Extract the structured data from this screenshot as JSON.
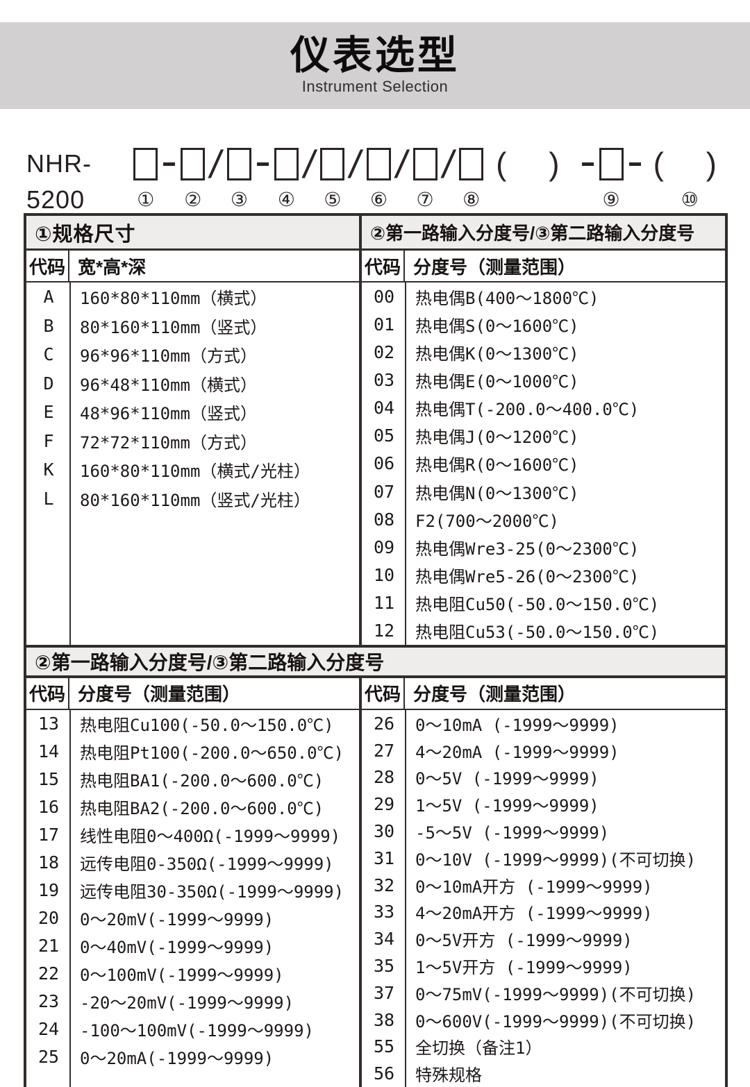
{
  "page": {
    "title": "仪表选型",
    "subtitle": "Instrument Selection"
  },
  "model": {
    "prefix": "NHR-5200",
    "segments": [
      {
        "kind": "box",
        "sub": "①"
      },
      {
        "kind": "dash",
        "text": "-"
      },
      {
        "kind": "box",
        "sub": "②"
      },
      {
        "kind": "slash",
        "text": "/"
      },
      {
        "kind": "box",
        "sub": "③"
      },
      {
        "kind": "dash",
        "text": "-"
      },
      {
        "kind": "box",
        "sub": "④"
      },
      {
        "kind": "slash",
        "text": "/"
      },
      {
        "kind": "box",
        "sub": "⑤"
      },
      {
        "kind": "slash",
        "text": "/"
      },
      {
        "kind": "box",
        "sub": "⑥"
      },
      {
        "kind": "slash",
        "text": "/"
      },
      {
        "kind": "box",
        "sub": "⑦"
      },
      {
        "kind": "slash",
        "text": "/"
      },
      {
        "kind": "box",
        "sub": "⑧"
      },
      {
        "kind": "parens",
        "text": "( )",
        "sub": ""
      },
      {
        "kind": "dash",
        "text": "-"
      },
      {
        "kind": "box",
        "sub": "⑨"
      },
      {
        "kind": "dash",
        "text": "-"
      },
      {
        "kind": "parens",
        "text": "( )",
        "sub": "⑩"
      }
    ]
  },
  "upper_table": {
    "left": {
      "section_title": "①规格尺寸",
      "col_code": "代码",
      "col_desc": "宽*高*深",
      "rows": [
        [
          "A",
          "160*80*110mm（横式）"
        ],
        [
          "B",
          "80*160*110mm（竖式）"
        ],
        [
          "C",
          "96*96*110mm（方式）"
        ],
        [
          "D",
          "96*48*110mm（横式）"
        ],
        [
          "E",
          "48*96*110mm（竖式）"
        ],
        [
          "F",
          "72*72*110mm（方式）"
        ],
        [
          "K",
          "160*80*110mm（横式/光柱）"
        ],
        [
          "L",
          "80*160*110mm（竖式/光柱）"
        ]
      ]
    },
    "right": {
      "section_title": "②第一路输入分度号/③第二路输入分度号",
      "col_code": "代码",
      "col_desc": "分度号（测量范围）",
      "rows": [
        [
          "00",
          "热电偶B(400～1800℃)"
        ],
        [
          "01",
          "热电偶S(0～1600℃)"
        ],
        [
          "02",
          "热电偶K(0～1300℃)"
        ],
        [
          "03",
          "热电偶E(0～1000℃)"
        ],
        [
          "04",
          "热电偶T(-200.0～400.0℃)"
        ],
        [
          "05",
          "热电偶J(0～1200℃)"
        ],
        [
          "06",
          "热电偶R(0～1600℃)"
        ],
        [
          "07",
          "热电偶N(0～1300℃)"
        ],
        [
          "08",
          "F2(700～2000℃)"
        ],
        [
          "09",
          "热电偶Wre3-25(0～2300℃)"
        ],
        [
          "10",
          "热电偶Wre5-26(0～2300℃)"
        ],
        [
          "11",
          "热电阻Cu50(-50.0～150.0℃)"
        ],
        [
          "12",
          "热电阻Cu53(-50.0～150.0℃)"
        ]
      ]
    }
  },
  "lower_table": {
    "banner": "②第一路输入分度号/③第二路输入分度号",
    "left": {
      "col_code": "代码",
      "col_desc": "分度号（测量范围）",
      "rows": [
        [
          "13",
          "热电阻Cu100(-50.0～150.0℃)"
        ],
        [
          "14",
          "热电阻Pt100(-200.0～650.0℃)"
        ],
        [
          "15",
          "热电阻BA1(-200.0～600.0℃)"
        ],
        [
          "16",
          "热电阻BA2(-200.0～600.0℃)"
        ],
        [
          "17",
          "线性电阻0～400Ω(-1999～9999)"
        ],
        [
          "18",
          "远传电阻0-350Ω(-1999～9999)"
        ],
        [
          "19",
          "远传电阻30-350Ω(-1999～9999)"
        ],
        [
          "20",
          "0～20mV(-1999～9999)"
        ],
        [
          "21",
          "0～40mV(-1999～9999)"
        ],
        [
          "22",
          "0～100mV(-1999～9999)"
        ],
        [
          "23",
          "-20～20mV(-1999～9999)"
        ],
        [
          "24",
          "-100～100mV(-1999～9999)"
        ],
        [
          "25",
          "0～20mA(-1999～9999)"
        ]
      ]
    },
    "right": {
      "col_code": "代码",
      "col_desc": "分度号（测量范围）",
      "rows": [
        [
          "26",
          "0～10mA (-1999～9999)"
        ],
        [
          "27",
          "4～20mA (-1999～9999)"
        ],
        [
          "28",
          "0～5V (-1999～9999)"
        ],
        [
          "29",
          "1～5V (-1999～9999)"
        ],
        [
          "30",
          "-5～5V (-1999～9999)"
        ],
        [
          "31",
          "0～10V (-1999～9999)(不可切换)"
        ],
        [
          "32",
          "0～10mA开方 (-1999～9999)"
        ],
        [
          "33",
          "4～20mA开方 (-1999～9999)"
        ],
        [
          "34",
          "0～5V开方 (-1999～9999)"
        ],
        [
          "35",
          "1～5V开方 (-1999～9999)"
        ],
        [
          "37",
          "0～75mV(-1999～9999)(不可切换)"
        ],
        [
          "38",
          "0～600V(-1999～9999)(不可切换)"
        ],
        [
          "55",
          "全切换（备注1）"
        ],
        [
          "56",
          "特殊规格"
        ]
      ]
    }
  },
  "colors": {
    "banner_gray": "#d2d0d1",
    "section_header_bg": "#efedec",
    "border": "#322d2b",
    "text": "#1d1918"
  }
}
